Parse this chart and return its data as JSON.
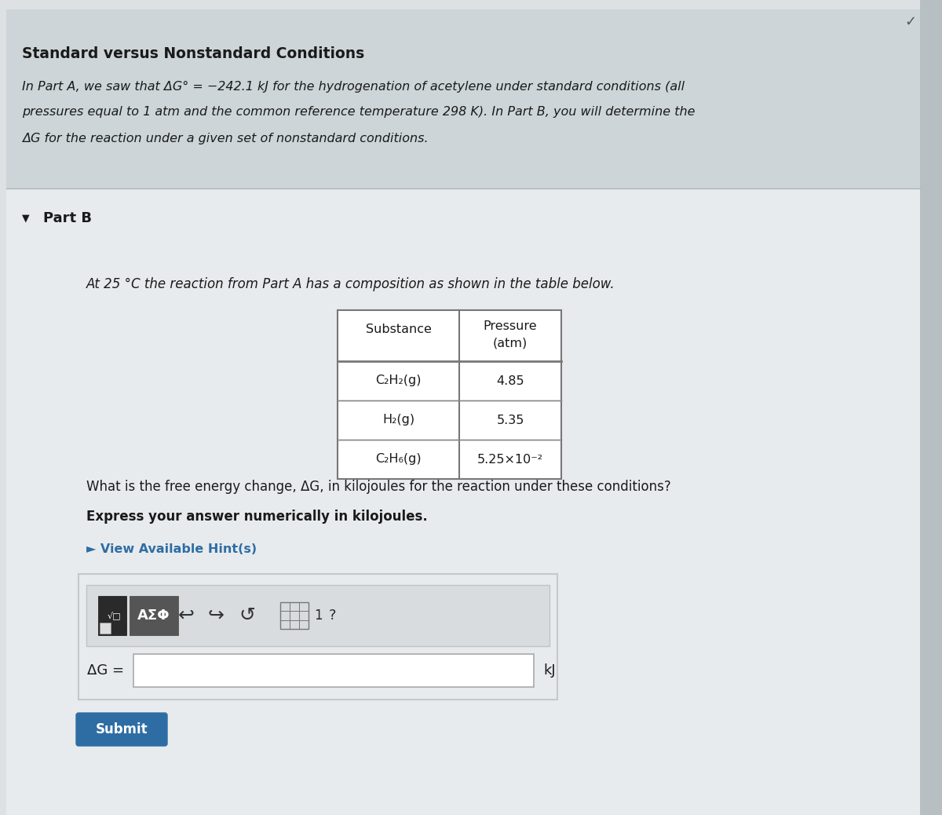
{
  "title": "Standard versus Nonstandard Conditions",
  "intro_line1": "In Part A, we saw that ΔG° = −242.1 kJ for the hydrogenation of acetylene under standard conditions (all",
  "intro_line2": "pressures equal to 1 atm and the common reference temperature 298 K). In Part B, you will determine the",
  "intro_line3": "ΔG for the reaction under a given set of nonstandard conditions.",
  "part_b_label": "Part B",
  "part_b_text": "At 25 °C the reaction from Part A has a composition as shown in the table below.",
  "table_header_col1": "Substance",
  "table_header_col2_line1": "Pressure",
  "table_header_col2_line2": "(atm)",
  "table_rows": [
    [
      "C₂H₂(g)",
      "4.85"
    ],
    [
      "H₂(g)",
      "5.35"
    ],
    [
      "C₂H₆(g)",
      "5.25×10⁻²"
    ]
  ],
  "question_text": "What is the free energy change, ΔG, in kilojoules for the reaction under these conditions?",
  "bold_text": "Express your answer numerically in kilojoules.",
  "hint_text": "► View Available Hint(s)",
  "delta_g_label": "ΔG =",
  "kj_label": "kJ",
  "submit_label": "Submit",
  "bg_color_header": "#cdd5d8",
  "bg_color_main": "#dde1e3",
  "bg_color_section": "#e8ebed",
  "bg_color_white": "#ffffff",
  "bg_color_toolbar_outer": "#d8dcde",
  "text_color_main": "#1a1a1a",
  "text_color_hint": "#2e6da4",
  "submit_bg": "#2e6da4",
  "submit_text_color": "#ffffff",
  "checkmark_color": "#555555",
  "fig_width": 12.0,
  "fig_height": 10.38,
  "dpi": 100
}
